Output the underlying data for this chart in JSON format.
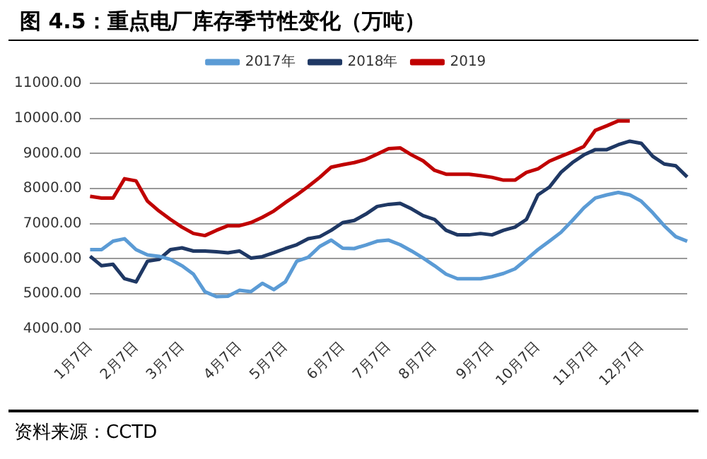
{
  "chart_data": {
    "type": "line",
    "title": "图 4.5：重点电厂库存季节性变化（万吨）",
    "categories": [
      "1月7日",
      null,
      null,
      null,
      "2月7日",
      null,
      null,
      null,
      "3月7日",
      null,
      null,
      null,
      null,
      "4月7日",
      null,
      null,
      null,
      "5月7日",
      null,
      null,
      null,
      null,
      "6月7日",
      null,
      null,
      null,
      "7月7日",
      null,
      null,
      null,
      "8月7日",
      null,
      null,
      null,
      null,
      "9月7日",
      null,
      null,
      null,
      "10月7日",
      null,
      null,
      null,
      null,
      "11月7日",
      null,
      null,
      null,
      "12月7日",
      null,
      null,
      null,
      null
    ],
    "series": [
      {
        "name": "2017年",
        "color": "#5b9bd5",
        "values": [
          6260,
          6260,
          6500,
          6570,
          6260,
          6110,
          6070,
          5980,
          5800,
          5560,
          5060,
          4920,
          4930,
          5100,
          5060,
          5300,
          5120,
          5340,
          5930,
          6040,
          6350,
          6530,
          6300,
          6290,
          6390,
          6500,
          6530,
          6400,
          6220,
          6020,
          5800,
          5560,
          5430,
          5430,
          5430,
          5490,
          5580,
          5710,
          5980,
          6260,
          6500,
          6750,
          7090,
          7450,
          7730,
          7820,
          7890,
          7820,
          7640,
          7310,
          6940,
          6630,
          6500
        ]
      },
      {
        "name": "2018年",
        "color": "#1f3864",
        "values": [
          6070,
          5800,
          5840,
          5430,
          5340,
          5930,
          5980,
          6260,
          6310,
          6220,
          6220,
          6200,
          6170,
          6220,
          6020,
          6060,
          6170,
          6290,
          6400,
          6570,
          6630,
          6810,
          7030,
          7090,
          7270,
          7490,
          7550,
          7580,
          7420,
          7230,
          7120,
          6810,
          6680,
          6680,
          6720,
          6680,
          6810,
          6900,
          7120,
          7820,
          8040,
          8460,
          8740,
          8960,
          9110,
          9110,
          9250,
          9350,
          9290,
          8920,
          8700,
          8650,
          8330
        ]
      },
      {
        "name": "2019",
        "color": "#c00000",
        "values": [
          7780,
          7730,
          7730,
          8280,
          8220,
          7640,
          7360,
          7120,
          6900,
          6720,
          6660,
          6810,
          6940,
          6940,
          7030,
          7180,
          7360,
          7600,
          7820,
          8060,
          8320,
          8610,
          8680,
          8740,
          8830,
          8980,
          9140,
          9160,
          8960,
          8790,
          8520,
          8410,
          8410,
          8410,
          8370,
          8320,
          8240,
          8240,
          8460,
          8560,
          8780,
          8920,
          9050,
          9200,
          9660,
          9790,
          9930,
          9930,
          null,
          null,
          null,
          null,
          null
        ]
      }
    ],
    "ylim": [
      4000,
      11000
    ],
    "yticks": [
      {
        "value": 4000,
        "label": "4000.00"
      },
      {
        "value": 5000,
        "label": "5000.00"
      },
      {
        "value": 6000,
        "label": "6000.00"
      },
      {
        "value": 7000,
        "label": "7000.00"
      },
      {
        "value": 8000,
        "label": "8000.00"
      },
      {
        "value": 9000,
        "label": "9000.00"
      },
      {
        "value": 10000,
        "label": "10000.00"
      },
      {
        "value": 11000,
        "label": "11000.00"
      }
    ],
    "grid": "y",
    "legend": "top",
    "marker": "none",
    "line_style": "solid",
    "annotations": [
      "资料来源：CCTD"
    ]
  }
}
